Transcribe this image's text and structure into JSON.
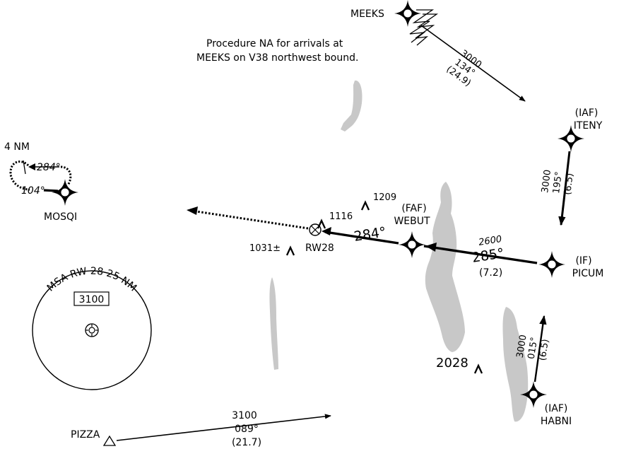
{
  "colors": {
    "water": "#c8c8c8",
    "ink": "#000000",
    "background": "#ffffff"
  },
  "note": {
    "line1": "Procedure NA for arrivals at",
    "line2": "MEEKS on V38 northwest bound."
  },
  "fixes": {
    "meeks": {
      "name": "MEEKS"
    },
    "iteny": {
      "role": "(IAF)",
      "name": "ITENY"
    },
    "mosqi": {
      "name": "MOSQI"
    },
    "webut": {
      "role": "(FAF)",
      "name": "WEBUT"
    },
    "picum": {
      "role": "(IF)",
      "name": "PICUM"
    },
    "habni": {
      "role": "(IAF)",
      "name": "HABNI"
    },
    "pizza": {
      "name": "PIZZA"
    },
    "rw28": {
      "name": "RW28"
    }
  },
  "legs": {
    "meeks_iteny": {
      "altitude": "3000",
      "course": "134°",
      "distance": "(24.9)"
    },
    "iteny_picum": {
      "altitude": "3000",
      "course": "195°",
      "distance": "(6.5)"
    },
    "picum_webut": {
      "altitude": "2600",
      "course": "285°",
      "distance": "(7.2)"
    },
    "webut_rw28": {
      "course": "284°"
    },
    "habni_picum": {
      "altitude": "3000",
      "course": "015°",
      "distance": "(6.5)"
    },
    "pizza_leg": {
      "altitude": "3100",
      "course": "089°",
      "distance": "(21.7)"
    }
  },
  "hold": {
    "distance": "4 NM",
    "inbound": "284°",
    "outbound": "104°"
  },
  "obstacles": [
    {
      "elevation": "1209"
    },
    {
      "elevation": "1116"
    },
    {
      "elevation": "1031±"
    },
    {
      "elevation": "2028"
    }
  ],
  "msa": {
    "title": "MSA RW 28 25 NM",
    "altitude": "3100"
  },
  "icons": {
    "fix": "four-point-star-fix-icon",
    "waypoint": "diamond-fix-icon",
    "obstacle": "obstacle-caret-icon",
    "threshold": "runway-threshold-icon",
    "vor": "vor-triangle-icon",
    "break": "zigzag-break-icon"
  }
}
